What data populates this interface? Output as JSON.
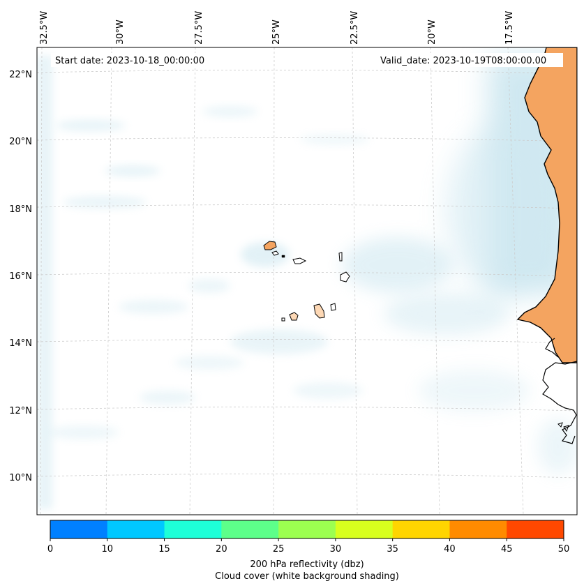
{
  "map": {
    "start_date": "Start date: 2023-10-18_00:00:00",
    "valid_date": "Valid_date: 2023-10-19T08:00:00.00",
    "lon_labels": [
      "32.5°W",
      "30°W",
      "27.5°W",
      "25°W",
      "22.5°W",
      "20°W",
      "17.5°W"
    ],
    "lat_labels": [
      "22°N",
      "20°N",
      "18°N",
      "16°N",
      "14°N",
      "12°N",
      "10°N"
    ],
    "land_colors": {
      "continent": "#f4a460",
      "island": "#f4a460",
      "island_light": "#fdd8b5"
    },
    "cloud_color": "#a9d6e5"
  },
  "colorbar": {
    "ticks": [
      "0",
      "10",
      "15",
      "20",
      "25",
      "30",
      "35",
      "40",
      "45",
      "50"
    ],
    "colors": [
      "#0080ff",
      "#00c8ff",
      "#1effd8",
      "#5dff8a",
      "#9cff50",
      "#d8ff1e",
      "#ffd500",
      "#ff8b00",
      "#ff4800"
    ],
    "label_line1": "200 hPa reflectivity (dbz)",
    "label_line2": "Cloud cover (white background shading)"
  }
}
